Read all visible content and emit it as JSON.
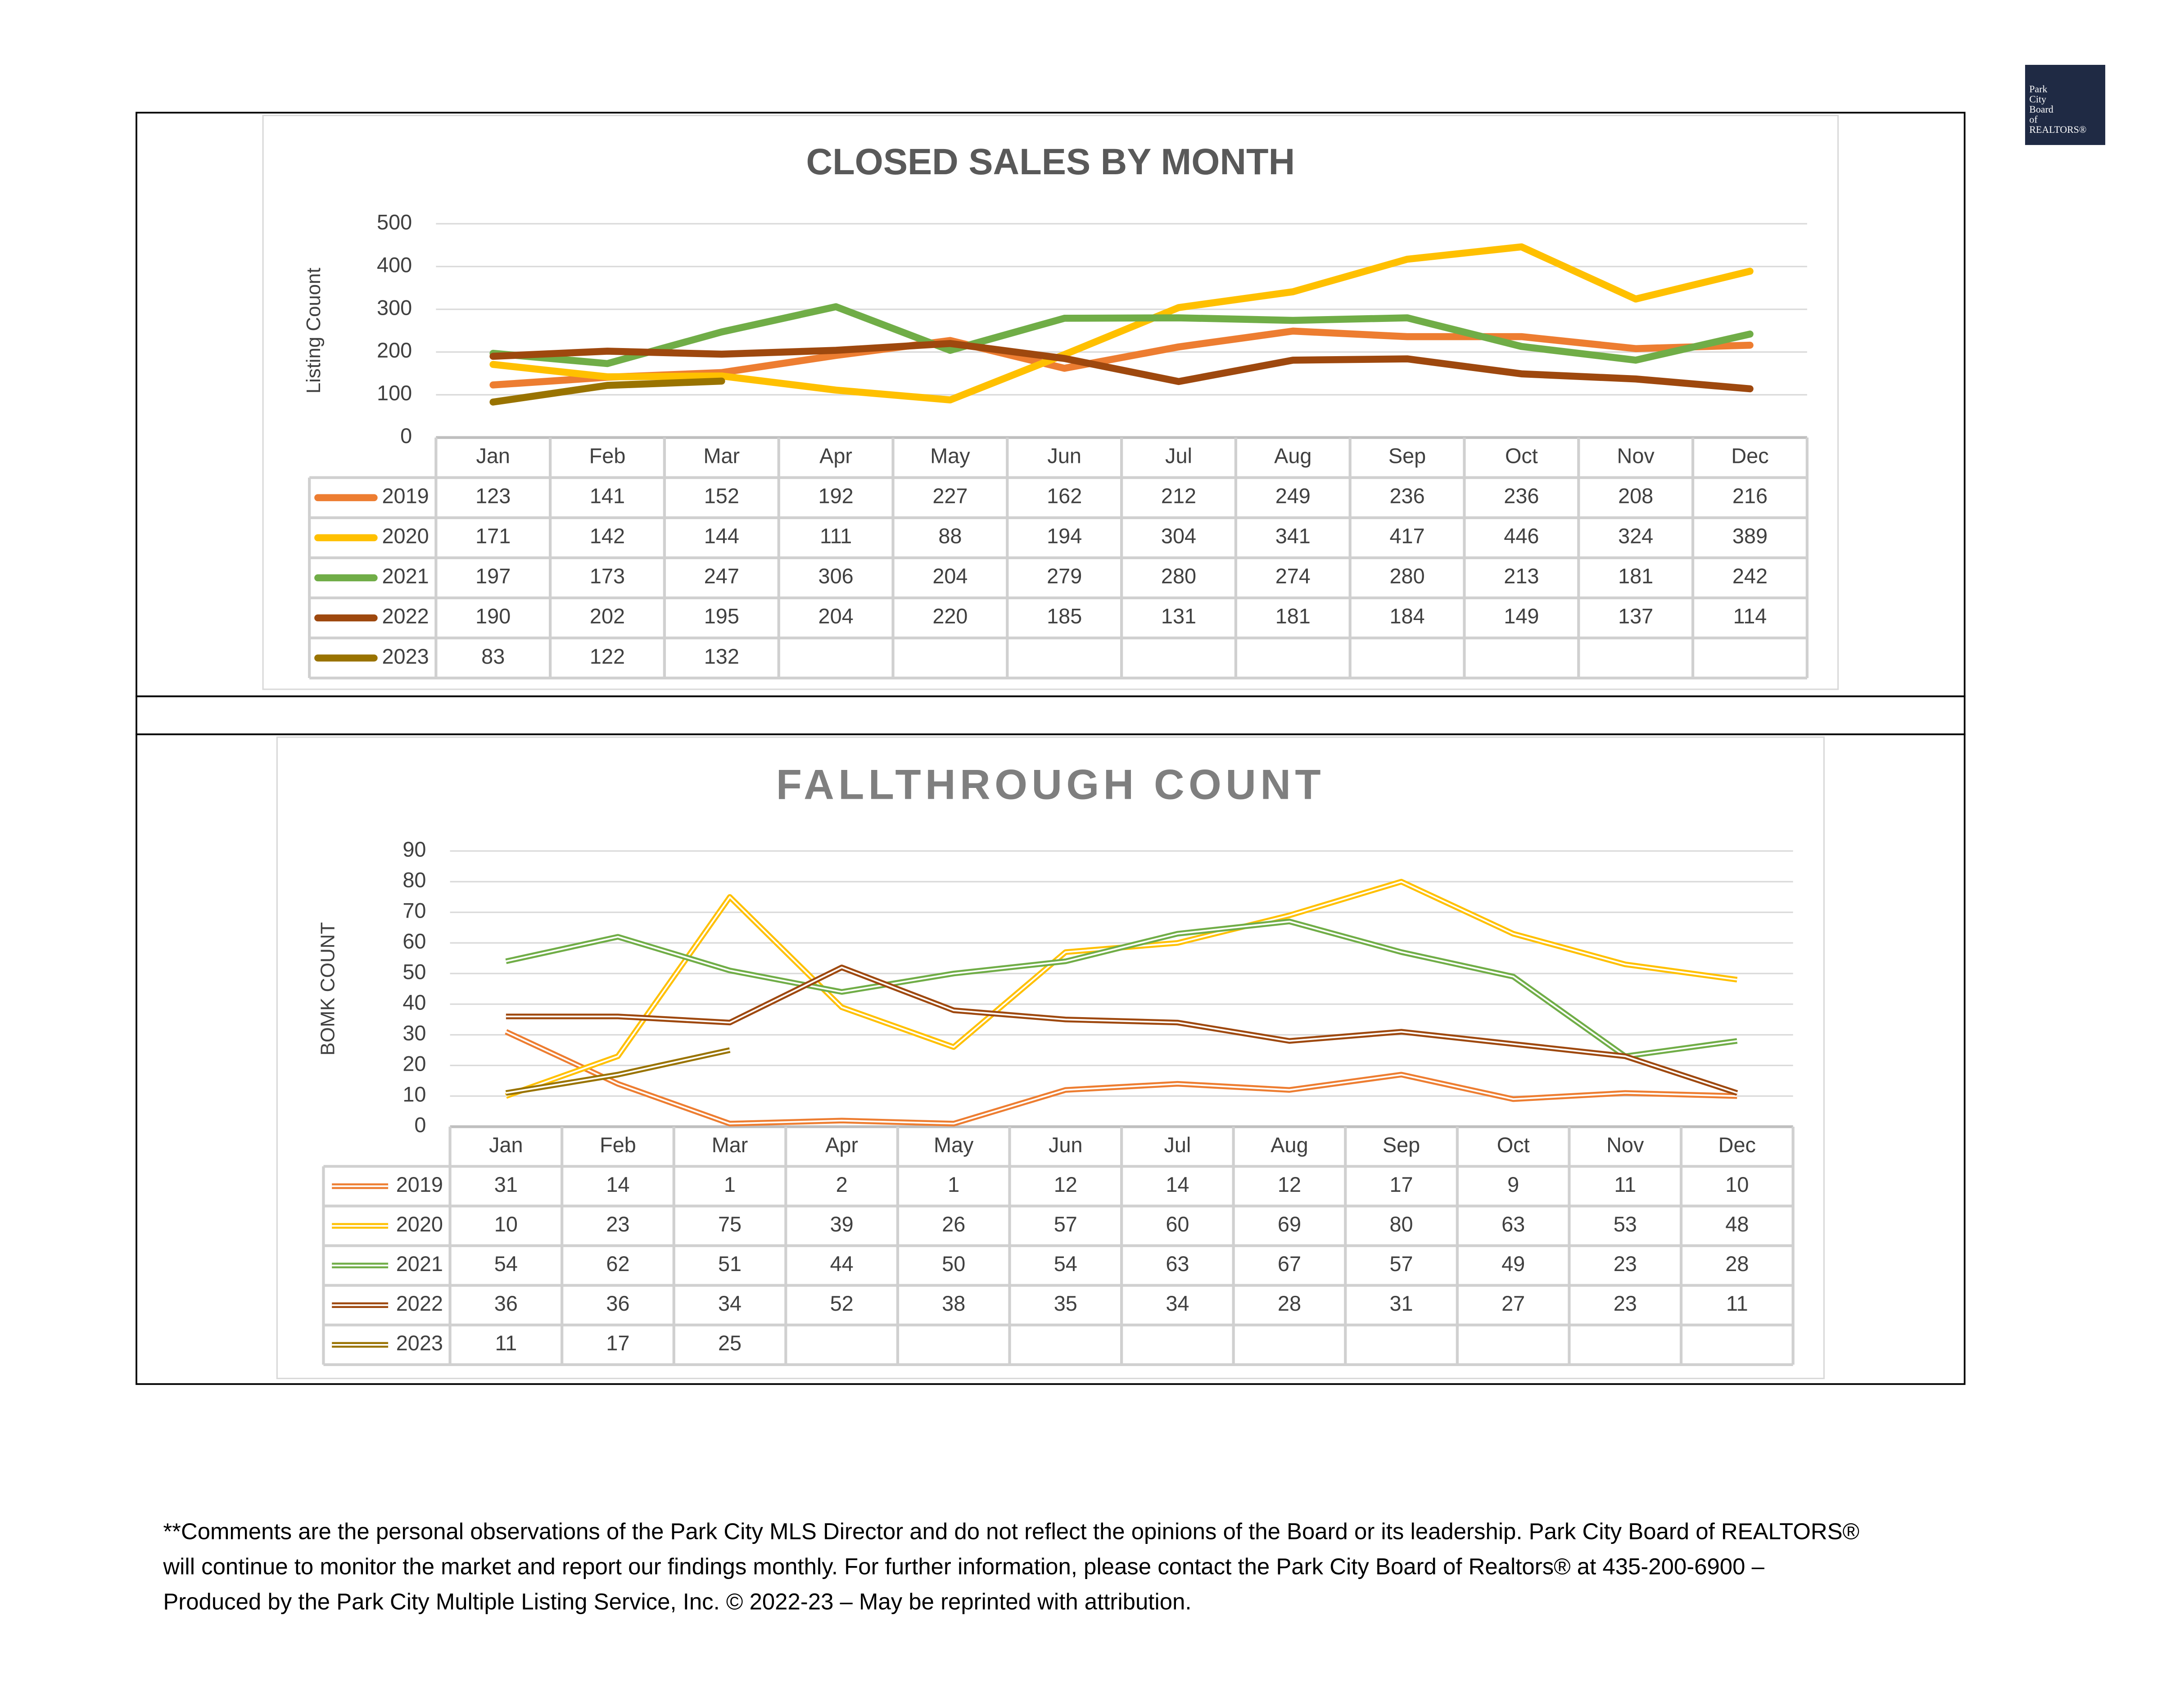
{
  "chart_data": [
    {
      "type": "line",
      "title": "CLOSED SALES BY MONTH",
      "y_label": "Listing Couont",
      "categories": [
        "Jan",
        "Feb",
        "Mar",
        "Apr",
        "May",
        "Jun",
        "Jul",
        "Aug",
        "Sep",
        "Oct",
        "Nov",
        "Dec"
      ],
      "ylim": [
        0,
        500
      ],
      "yticks": [
        0,
        100,
        200,
        300,
        400,
        500
      ],
      "grid": true,
      "line_style": "single",
      "series": [
        {
          "name": "2019",
          "color": "#ED7D31",
          "values": [
            123,
            141,
            152,
            192,
            227,
            162,
            212,
            249,
            236,
            236,
            208,
            216
          ]
        },
        {
          "name": "2020",
          "color": "#FFC000",
          "values": [
            171,
            142,
            144,
            111,
            88,
            194,
            304,
            341,
            417,
            446,
            324,
            389
          ]
        },
        {
          "name": "2021",
          "color": "#70AD47",
          "values": [
            197,
            173,
            247,
            306,
            204,
            279,
            280,
            274,
            280,
            213,
            181,
            242
          ]
        },
        {
          "name": "2022",
          "color": "#9E480E",
          "values": [
            190,
            202,
            195,
            204,
            220,
            185,
            131,
            181,
            184,
            149,
            137,
            114
          ]
        },
        {
          "name": "2023",
          "color": "#997300",
          "values": [
            83,
            122,
            132,
            null,
            null,
            null,
            null,
            null,
            null,
            null,
            null,
            null
          ]
        }
      ]
    },
    {
      "type": "line",
      "title": "FALLTHROUGH COUNT",
      "y_label": "BOMK COUNT",
      "categories": [
        "Jan",
        "Feb",
        "Mar",
        "Apr",
        "May",
        "Jun",
        "Jul",
        "Aug",
        "Sep",
        "Oct",
        "Nov",
        "Dec"
      ],
      "ylim": [
        0,
        90
      ],
      "yticks": [
        0,
        10,
        20,
        30,
        40,
        50,
        60,
        70,
        80,
        90
      ],
      "grid": true,
      "line_style": "double",
      "series": [
        {
          "name": "2019",
          "color": "#ED7D31",
          "values": [
            31,
            14,
            1,
            2,
            1,
            12,
            14,
            12,
            17,
            9,
            11,
            10
          ]
        },
        {
          "name": "2020",
          "color": "#FFC000",
          "values": [
            10,
            23,
            75,
            39,
            26,
            57,
            60,
            69,
            80,
            63,
            53,
            48
          ]
        },
        {
          "name": "2021",
          "color": "#70AD47",
          "values": [
            54,
            62,
            51,
            44,
            50,
            54,
            63,
            67,
            57,
            49,
            23,
            28
          ]
        },
        {
          "name": "2022",
          "color": "#9E480E",
          "values": [
            36,
            36,
            34,
            52,
            38,
            35,
            34,
            28,
            31,
            27,
            23,
            11
          ]
        },
        {
          "name": "2023",
          "color": "#997300",
          "values": [
            11,
            17,
            25,
            null,
            null,
            null,
            null,
            null,
            null,
            null,
            null,
            null
          ]
        }
      ]
    }
  ],
  "logo": [
    "Park",
    "City",
    "Board",
    "of",
    "REALTORS®"
  ],
  "footer": [
    "**Comments are the personal observations of the Park City MLS Director and do not reflect the opinions of the Board or its leadership. Park City Board of REALTORS®",
    "will continue to monitor the market and report our findings monthly. For further information, please contact the Park City Board of Realtors® at 435-200-6900 –",
    "Produced by the Park City Multiple Listing Service, Inc. © 2022-23 – May be reprinted with attribution."
  ]
}
